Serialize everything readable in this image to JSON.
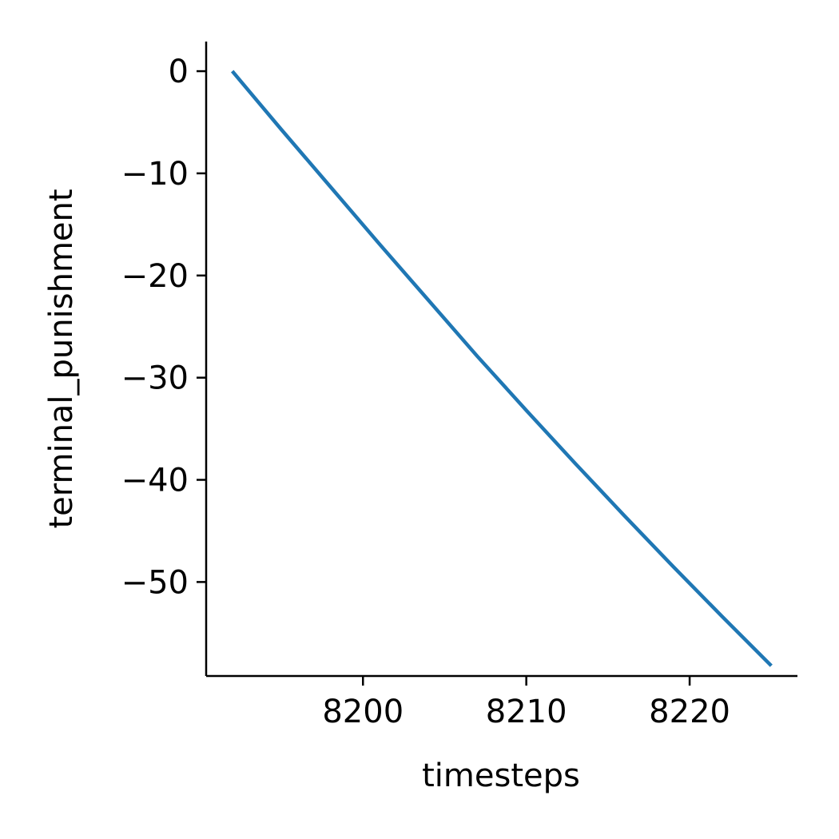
{
  "chart_data": {
    "type": "line",
    "title": "",
    "xlabel": "timesteps",
    "ylabel": "terminal_punishment",
    "xlim": [
      8190.4,
      8226.6
    ],
    "ylim": [
      -59.2,
      2.9
    ],
    "x_ticks": [
      8200,
      8210,
      8220
    ],
    "x_tick_labels": [
      "8200",
      "8210",
      "8220"
    ],
    "y_ticks": [
      0,
      -10,
      -20,
      -30,
      -40,
      -50
    ],
    "y_tick_labels": [
      "0",
      "−10",
      "−20",
      "−30",
      "−40",
      "−50"
    ],
    "grid": false,
    "legend": "none",
    "series": [
      {
        "color": "#1f77b4",
        "x": [
          8192,
          8195,
          8198,
          8201,
          8204,
          8207,
          8210,
          8213,
          8216,
          8219,
          8222,
          8225
        ],
        "y": [
          0,
          -5.7,
          -11.3,
          -16.9,
          -22.4,
          -27.9,
          -33.2,
          -38.4,
          -43.5,
          -48.5,
          -53.4,
          -58.2
        ]
      }
    ]
  }
}
